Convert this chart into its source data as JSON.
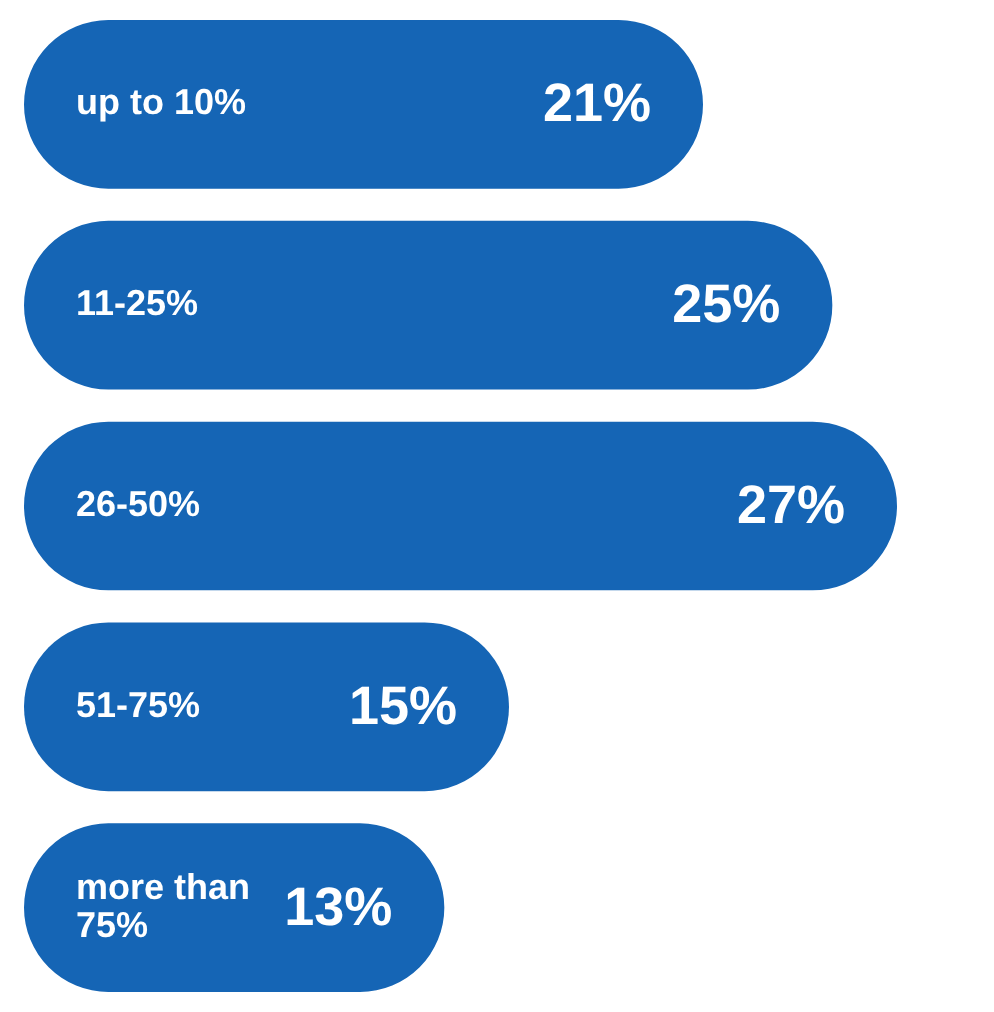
{
  "chart_data": {
    "type": "bar",
    "orientation": "horizontal",
    "categories": [
      "up to 10%",
      "11-25%",
      "26-50%",
      "51-75%",
      "more than 75%"
    ],
    "values": [
      21,
      25,
      27,
      15,
      13
    ],
    "value_labels": [
      "21%",
      "25%",
      "27%",
      "15%",
      "13%"
    ],
    "color": "#1565b5",
    "legend": false
  }
}
